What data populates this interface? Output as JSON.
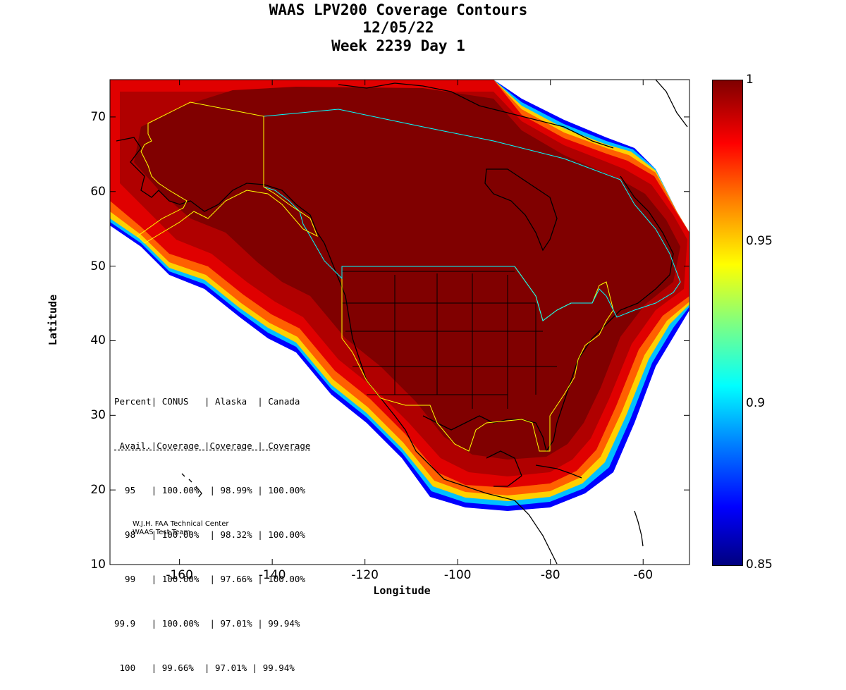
{
  "title": {
    "line1": "WAAS LPV200 Coverage Contours",
    "line2": "12/05/22",
    "line3": "Week 2239 Day 1"
  },
  "axes": {
    "xlabel": "Longitude",
    "ylabel": "Latitude",
    "x_ticks": [
      "-160",
      "-140",
      "-120",
      "-100",
      "-80",
      "-60"
    ],
    "y_ticks": [
      "70",
      "60",
      "50",
      "40",
      "30",
      "20",
      "10"
    ],
    "xlim": [
      -175,
      -50
    ],
    "ylim": [
      10,
      75
    ]
  },
  "colorbar": {
    "ticks": [
      "1",
      "0.95",
      "0.9",
      "0.85"
    ],
    "range": [
      0.85,
      1.0
    ],
    "colormap": "jet"
  },
  "stats_table": {
    "header1": "Percent| CONUS   | Alaska  | Canada",
    "header2": " Avail.|Coverage |Coverage | Coverage",
    "rows": [
      "  95   | 100.00%  | 98.99% | 100.00%",
      "  98   | 100.00%  | 98.32% | 100.00%",
      "  99   | 100.00%  | 97.66% | 100.00%",
      "99.9   | 100.00%  | 97.01% | 99.94%",
      " 100   | 99.66%  | 97.01% | 99.94%"
    ]
  },
  "credit": {
    "line1": "W.J.H. FAA Technical Center",
    "line2": "WAAS Test Team"
  },
  "colors": {
    "deep_red": "#800000",
    "red": "#cc0000",
    "boundary_yellow": "#ffff00",
    "boundary_cyan": "#00ffff"
  }
}
